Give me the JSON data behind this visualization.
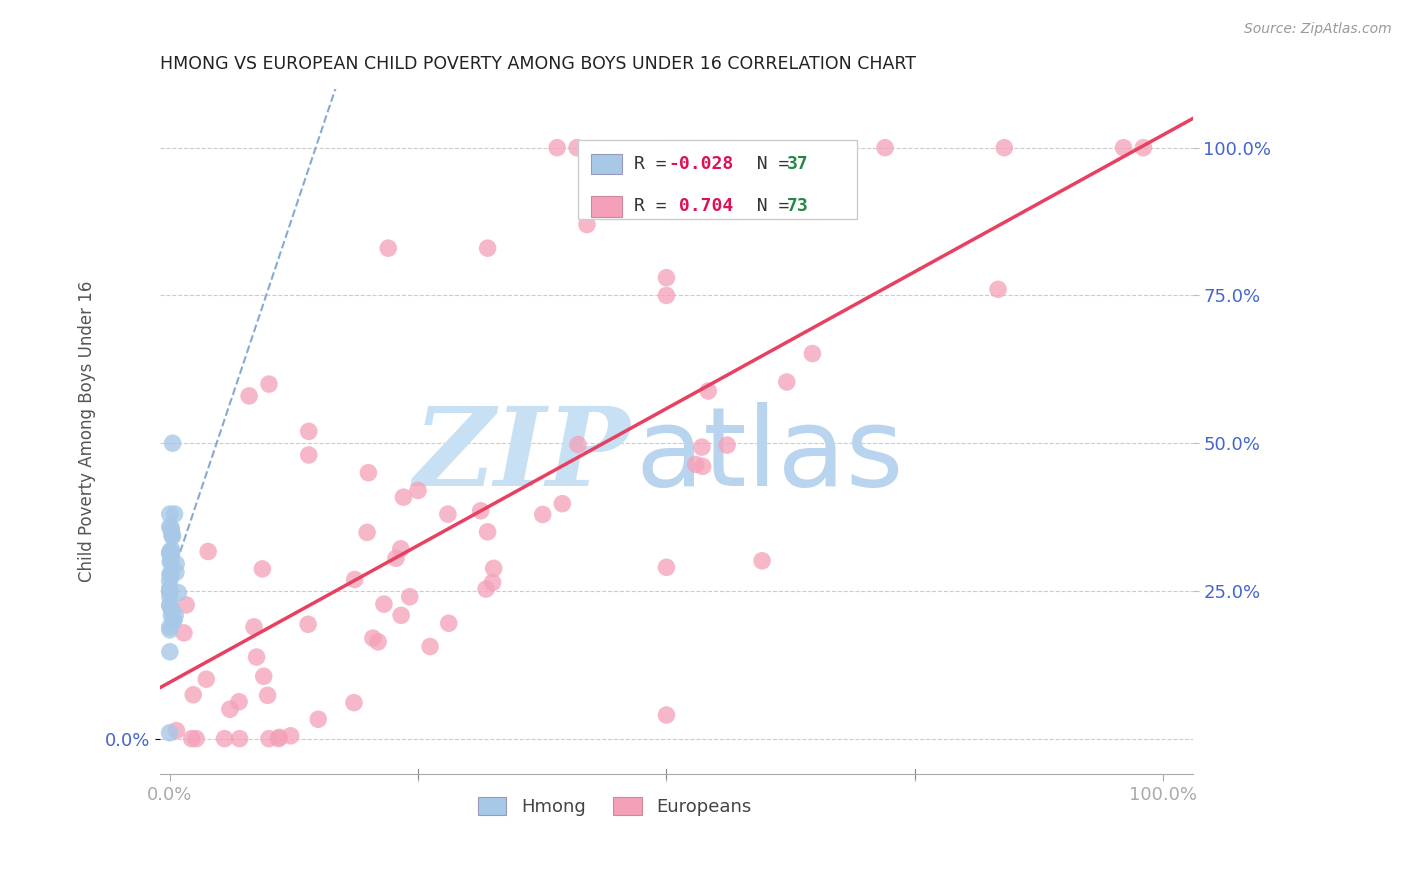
{
  "title": "HMONG VS EUROPEAN CHILD POVERTY AMONG BOYS UNDER 16 CORRELATION CHART",
  "source": "Source: ZipAtlas.com",
  "ylabel": "Child Poverty Among Boys Under 16",
  "hmong_color": "#a8c8e8",
  "euro_color": "#f4a0b8",
  "hmong_line_color": "#88aad0",
  "euro_line_color": "#e84060",
  "watermark_zip_color": "#c8e0f4",
  "watermark_atlas_color": "#b8d4ee",
  "title_color": "#222222",
  "axis_label_color": "#555555",
  "tick_label_color": "#4466cc",
  "grid_color": "#cccccc",
  "background_color": "#ffffff",
  "legend_border_color": "#cccccc",
  "legend_text_r_color": "#dd1155",
  "legend_text_n_color": "#228844",
  "source_color": "#999999",
  "r_hmong": "-0.028",
  "n_hmong": "37",
  "r_euro": "0.704",
  "n_euro": "73"
}
